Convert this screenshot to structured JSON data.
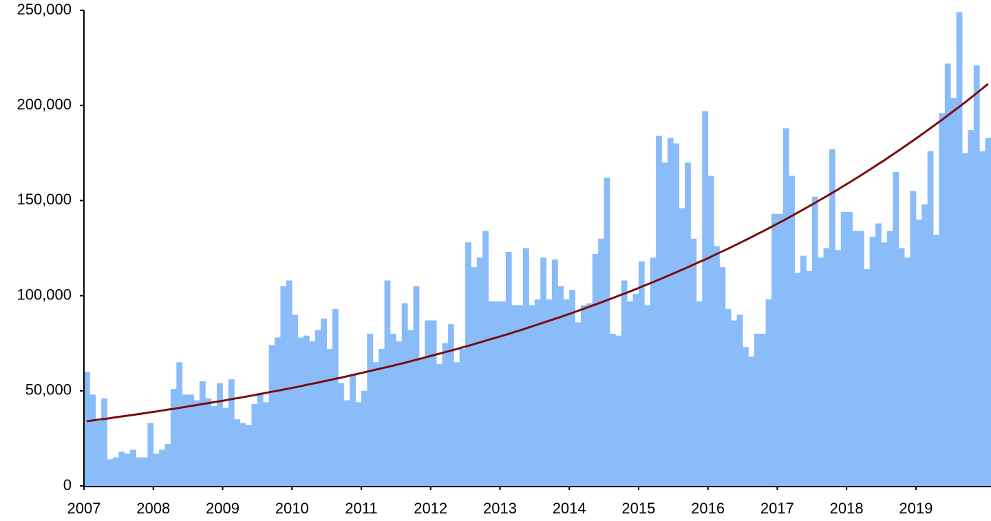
{
  "chart_data": {
    "type": "bar",
    "categories": [
      "2007",
      null,
      null,
      null,
      null,
      null,
      null,
      null,
      null,
      null,
      null,
      null,
      "2008",
      null,
      null,
      null,
      null,
      null,
      null,
      null,
      null,
      null,
      null,
      null,
      "2009",
      null,
      null,
      null,
      null,
      null,
      null,
      null,
      null,
      null,
      null,
      null,
      "2010",
      null,
      null,
      null,
      null,
      null,
      null,
      null,
      null,
      null,
      null,
      null,
      "2011",
      null,
      null,
      null,
      null,
      null,
      null,
      null,
      null,
      null,
      null,
      null,
      "2012",
      null,
      null,
      null,
      null,
      null,
      null,
      null,
      null,
      null,
      null,
      null,
      "2013",
      null,
      null,
      null,
      null,
      null,
      null,
      null,
      null,
      null,
      null,
      null,
      "2014",
      null,
      null,
      null,
      null,
      null,
      null,
      null,
      null,
      null,
      null,
      null,
      "2015",
      null,
      null,
      null,
      null,
      null,
      null,
      null,
      null,
      null,
      null,
      null,
      "2016",
      null,
      null,
      null,
      null,
      null,
      null,
      null,
      null,
      null,
      null,
      null,
      "2017",
      null,
      null,
      null,
      null,
      null,
      null,
      null,
      null,
      null,
      null,
      null,
      "2018",
      null,
      null,
      null,
      null,
      null,
      null,
      null,
      null,
      null,
      null,
      null,
      "2019",
      null,
      null,
      null,
      null,
      null,
      null,
      null,
      null,
      null,
      null,
      null,
      null
    ],
    "series": [
      {
        "type": "bar",
        "color": "#8abcf9",
        "values": [
          60000,
          48000,
          34000,
          46000,
          14000,
          15000,
          18000,
          17000,
          19000,
          15000,
          15000,
          33000,
          17000,
          19000,
          22000,
          51000,
          65000,
          48000,
          48000,
          45000,
          55000,
          46000,
          42000,
          54000,
          41000,
          56000,
          35000,
          33000,
          32000,
          43000,
          49000,
          44000,
          74000,
          78000,
          105000,
          108000,
          90000,
          78000,
          79000,
          76000,
          82000,
          88000,
          72000,
          93000,
          54000,
          45000,
          59000,
          44000,
          50000,
          80000,
          65000,
          72000,
          108000,
          80000,
          76000,
          96000,
          82000,
          105000,
          67000,
          87000,
          87000,
          64000,
          75000,
          85000,
          65000,
          72000,
          128000,
          115000,
          120000,
          134000,
          97000,
          97000,
          97000,
          123000,
          95000,
          95000,
          125000,
          95000,
          98000,
          120000,
          98000,
          119000,
          105000,
          98000,
          103000,
          86000,
          95000,
          96000,
          122000,
          130000,
          162000,
          80000,
          79000,
          108000,
          97000,
          101000,
          118000,
          95000,
          120000,
          184000,
          170000,
          183000,
          180000,
          146000,
          170000,
          130000,
          97000,
          197000,
          163000,
          126000,
          115000,
          93000,
          87000,
          90000,
          73000,
          68000,
          80000,
          80000,
          98000,
          143000,
          143000,
          188000,
          163000,
          112000,
          121000,
          113000,
          152000,
          120000,
          125000,
          177000,
          124000,
          144000,
          144000,
          134000,
          134000,
          114000,
          131000,
          138000,
          128000,
          134000,
          165000,
          125000,
          120000,
          155000,
          140000,
          148000,
          176000,
          132000,
          196000,
          222000,
          204000,
          249000,
          175000,
          187000,
          221000,
          176000,
          183000
        ]
      },
      {
        "type": "line",
        "color": "#7a0c0c",
        "values": [
          34000,
          34400,
          34800,
          35200,
          35600,
          36100,
          36500,
          36900,
          37300,
          37800,
          38200,
          38700,
          39100,
          39600,
          40100,
          40500,
          41000,
          41500,
          42000,
          42500,
          43000,
          43500,
          44000,
          44500,
          45000,
          45600,
          46100,
          46600,
          47200,
          47700,
          48300,
          48900,
          49500,
          50000,
          50600,
          51200,
          51800,
          52400,
          53100,
          53700,
          54300,
          55000,
          55600,
          56300,
          56900,
          57600,
          58300,
          59000,
          59700,
          60400,
          61100,
          61800,
          62500,
          63200,
          64000,
          64700,
          65500,
          66300,
          67100,
          67900,
          68700,
          69500,
          70300,
          71100,
          71900,
          72800,
          73600,
          74500,
          75400,
          76300,
          77200,
          78100,
          79000,
          79900,
          80900,
          81800,
          82800,
          83800,
          84800,
          85800,
          86800,
          87800,
          88800,
          89900,
          90900,
          92000,
          93100,
          94200,
          95300,
          96400,
          97600,
          98700,
          99900,
          101000,
          102200,
          103400,
          104700,
          105900,
          107100,
          108400,
          109700,
          111000,
          112300,
          113600,
          114900,
          116300,
          117700,
          119000,
          120400,
          121900,
          123300,
          124700,
          126200,
          127700,
          129200,
          130700,
          132300,
          133800,
          135400,
          137000,
          138600,
          140200,
          141900,
          143600,
          145300,
          147000,
          148700,
          150500,
          152200,
          154000,
          155800,
          157700,
          159500,
          161400,
          163300,
          165200,
          167200,
          169200,
          171100,
          173200,
          175200,
          177300,
          179400,
          181500,
          183600,
          185800,
          188000,
          190200,
          192400,
          194700,
          197000,
          199300,
          201600,
          204000,
          206400,
          208900,
          211300
        ]
      }
    ],
    "ylim": [
      0,
      250000
    ],
    "yticks": [
      0,
      {
        "value": 50000,
        "label": "50,000"
      },
      {
        "value": 100000,
        "label": "100,000"
      },
      {
        "value": 150000,
        "label": "150,000"
      },
      {
        "value": 200000,
        "label": "200,000"
      },
      {
        "value": 250000,
        "label": "250,000"
      }
    ],
    "grid": false
  }
}
